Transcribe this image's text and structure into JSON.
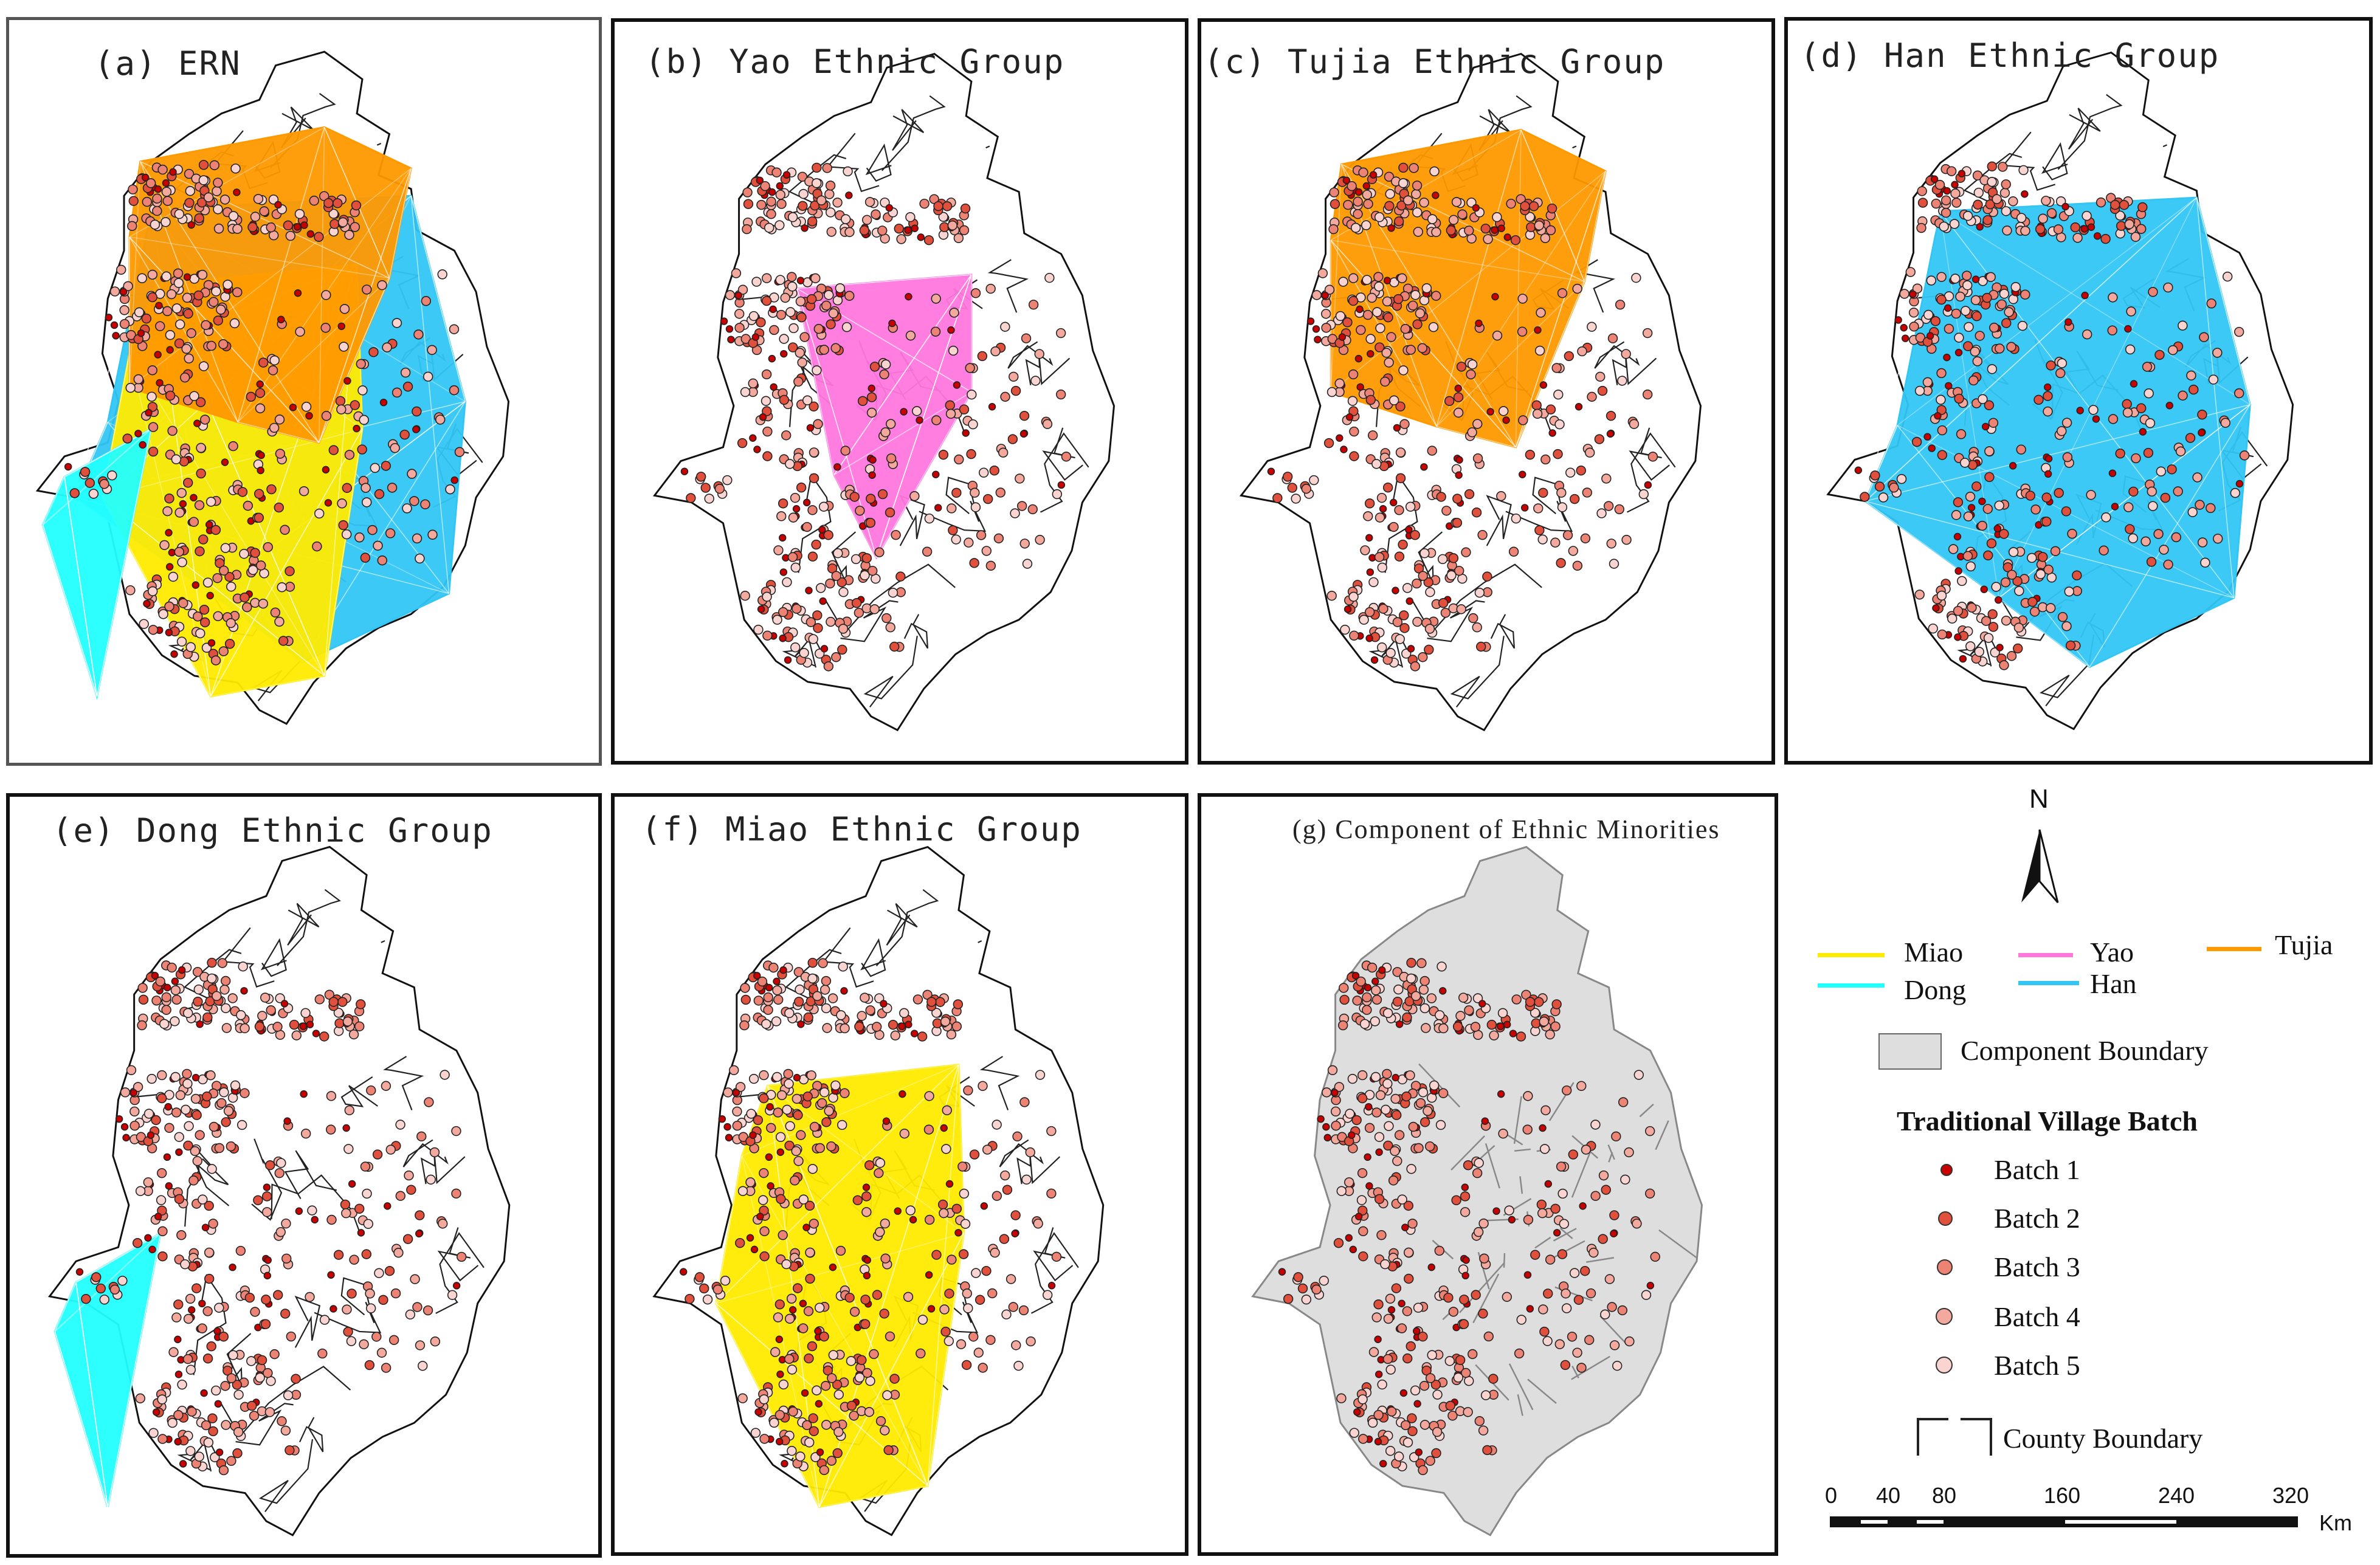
{
  "panels": [
    {
      "id": "a",
      "title": "(a) ERN",
      "network": "ern",
      "bg": "white"
    },
    {
      "id": "b",
      "title": "(b) Yao Ethnic Group",
      "network": "yao",
      "bg": "white"
    },
    {
      "id": "c",
      "title": "(c) Tujia Ethnic Group",
      "network": "tujia",
      "bg": "white"
    },
    {
      "id": "d",
      "title": "(d) Han Ethnic Group",
      "network": "han",
      "bg": "white"
    },
    {
      "id": "e",
      "title": "(e) Dong Ethnic Group",
      "network": "dong",
      "bg": "white"
    },
    {
      "id": "f",
      "title": "(f) Miao Ethnic Group",
      "network": "miao",
      "bg": "white"
    },
    {
      "id": "g",
      "title": "(g) Component of Ethnic Minorities",
      "network": "component",
      "bg": "gray"
    }
  ],
  "legend": {
    "north_label": "N",
    "ethnic_lines": [
      {
        "label": "Miao",
        "color": "#ffeb00"
      },
      {
        "label": "Yao",
        "color": "#ff77dd"
      },
      {
        "label": "Tujia",
        "color": "#ff9900"
      },
      {
        "label": "Dong",
        "color": "#22ffff"
      },
      {
        "label": "Han",
        "color": "#33c6f4"
      }
    ],
    "component_boundary_label": "Component Boundary",
    "component_fill": "#dedede",
    "batch_title": "Traditional Village Batch",
    "batches": [
      {
        "label": "Batch 1",
        "color": "#c90000"
      },
      {
        "label": "Batch 2",
        "color": "#e0503c"
      },
      {
        "label": "Batch 3",
        "color": "#ec8374"
      },
      {
        "label": "Batch 4",
        "color": "#f3a99d"
      },
      {
        "label": "Batch 5",
        "color": "#fad4d0"
      }
    ],
    "county_boundary_label": "County Boundary",
    "scale": {
      "ticks": [
        "0",
        "40",
        "80",
        "160",
        "240",
        "320"
      ],
      "unit": "Km"
    }
  }
}
